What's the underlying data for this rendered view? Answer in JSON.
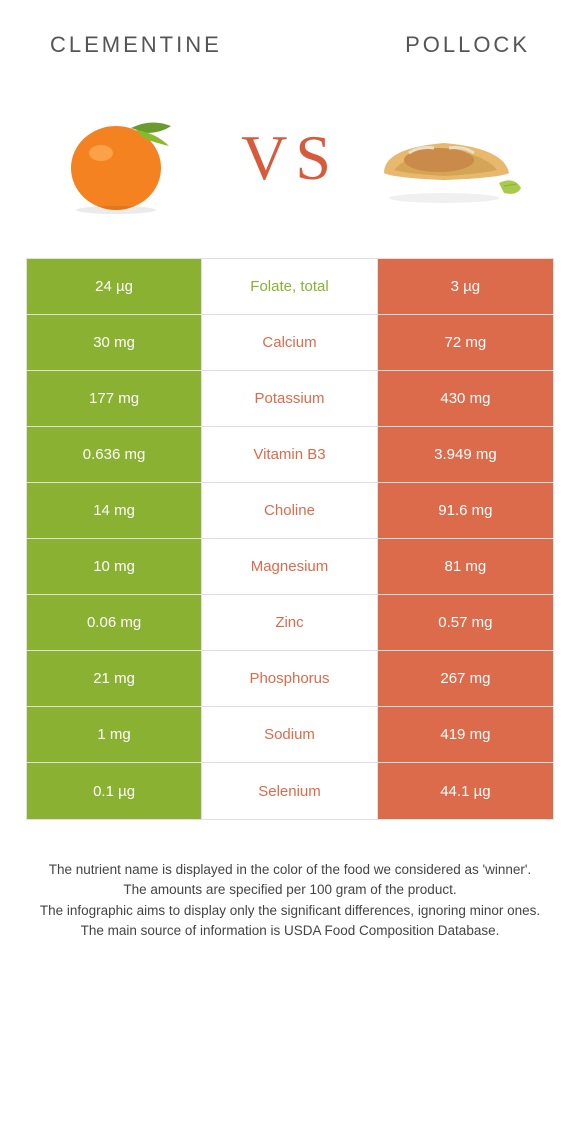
{
  "header": {
    "left": "CLEMENTINE",
    "right": "POLLOCK",
    "vs": "VS"
  },
  "colors": {
    "green": "#8ab131",
    "orange": "#dc6b4b",
    "vs": "#d85a3c",
    "clementine_fill": "#f58220",
    "clementine_leaf": "#6a9b2e",
    "taco_shell": "#e8b86d",
    "taco_fill": "#c98a4a",
    "lime": "#a8c94a"
  },
  "rows": [
    {
      "left": "24 µg",
      "label": "Folate, total",
      "right": "3 µg",
      "winner": "green"
    },
    {
      "left": "30 mg",
      "label": "Calcium",
      "right": "72 mg",
      "winner": "orange"
    },
    {
      "left": "177 mg",
      "label": "Potassium",
      "right": "430 mg",
      "winner": "orange"
    },
    {
      "left": "0.636 mg",
      "label": "Vitamin B3",
      "right": "3.949 mg",
      "winner": "orange"
    },
    {
      "left": "14 mg",
      "label": "Choline",
      "right": "91.6 mg",
      "winner": "orange"
    },
    {
      "left": "10 mg",
      "label": "Magnesium",
      "right": "81 mg",
      "winner": "orange"
    },
    {
      "left": "0.06 mg",
      "label": "Zinc",
      "right": "0.57 mg",
      "winner": "orange"
    },
    {
      "left": "21 mg",
      "label": "Phosphorus",
      "right": "267 mg",
      "winner": "orange"
    },
    {
      "left": "1 mg",
      "label": "Sodium",
      "right": "419 mg",
      "winner": "orange"
    },
    {
      "left": "0.1 µg",
      "label": "Selenium",
      "right": "44.1 µg",
      "winner": "orange"
    }
  ],
  "footer": {
    "l1": "The nutrient name is displayed in the color of the food we considered as 'winner'.",
    "l2": "The amounts are specified per 100 gram of the product.",
    "l3": "The infographic aims to display only the significant differences, ignoring minor ones.",
    "l4": "The main source of information is USDA Food Composition Database."
  }
}
